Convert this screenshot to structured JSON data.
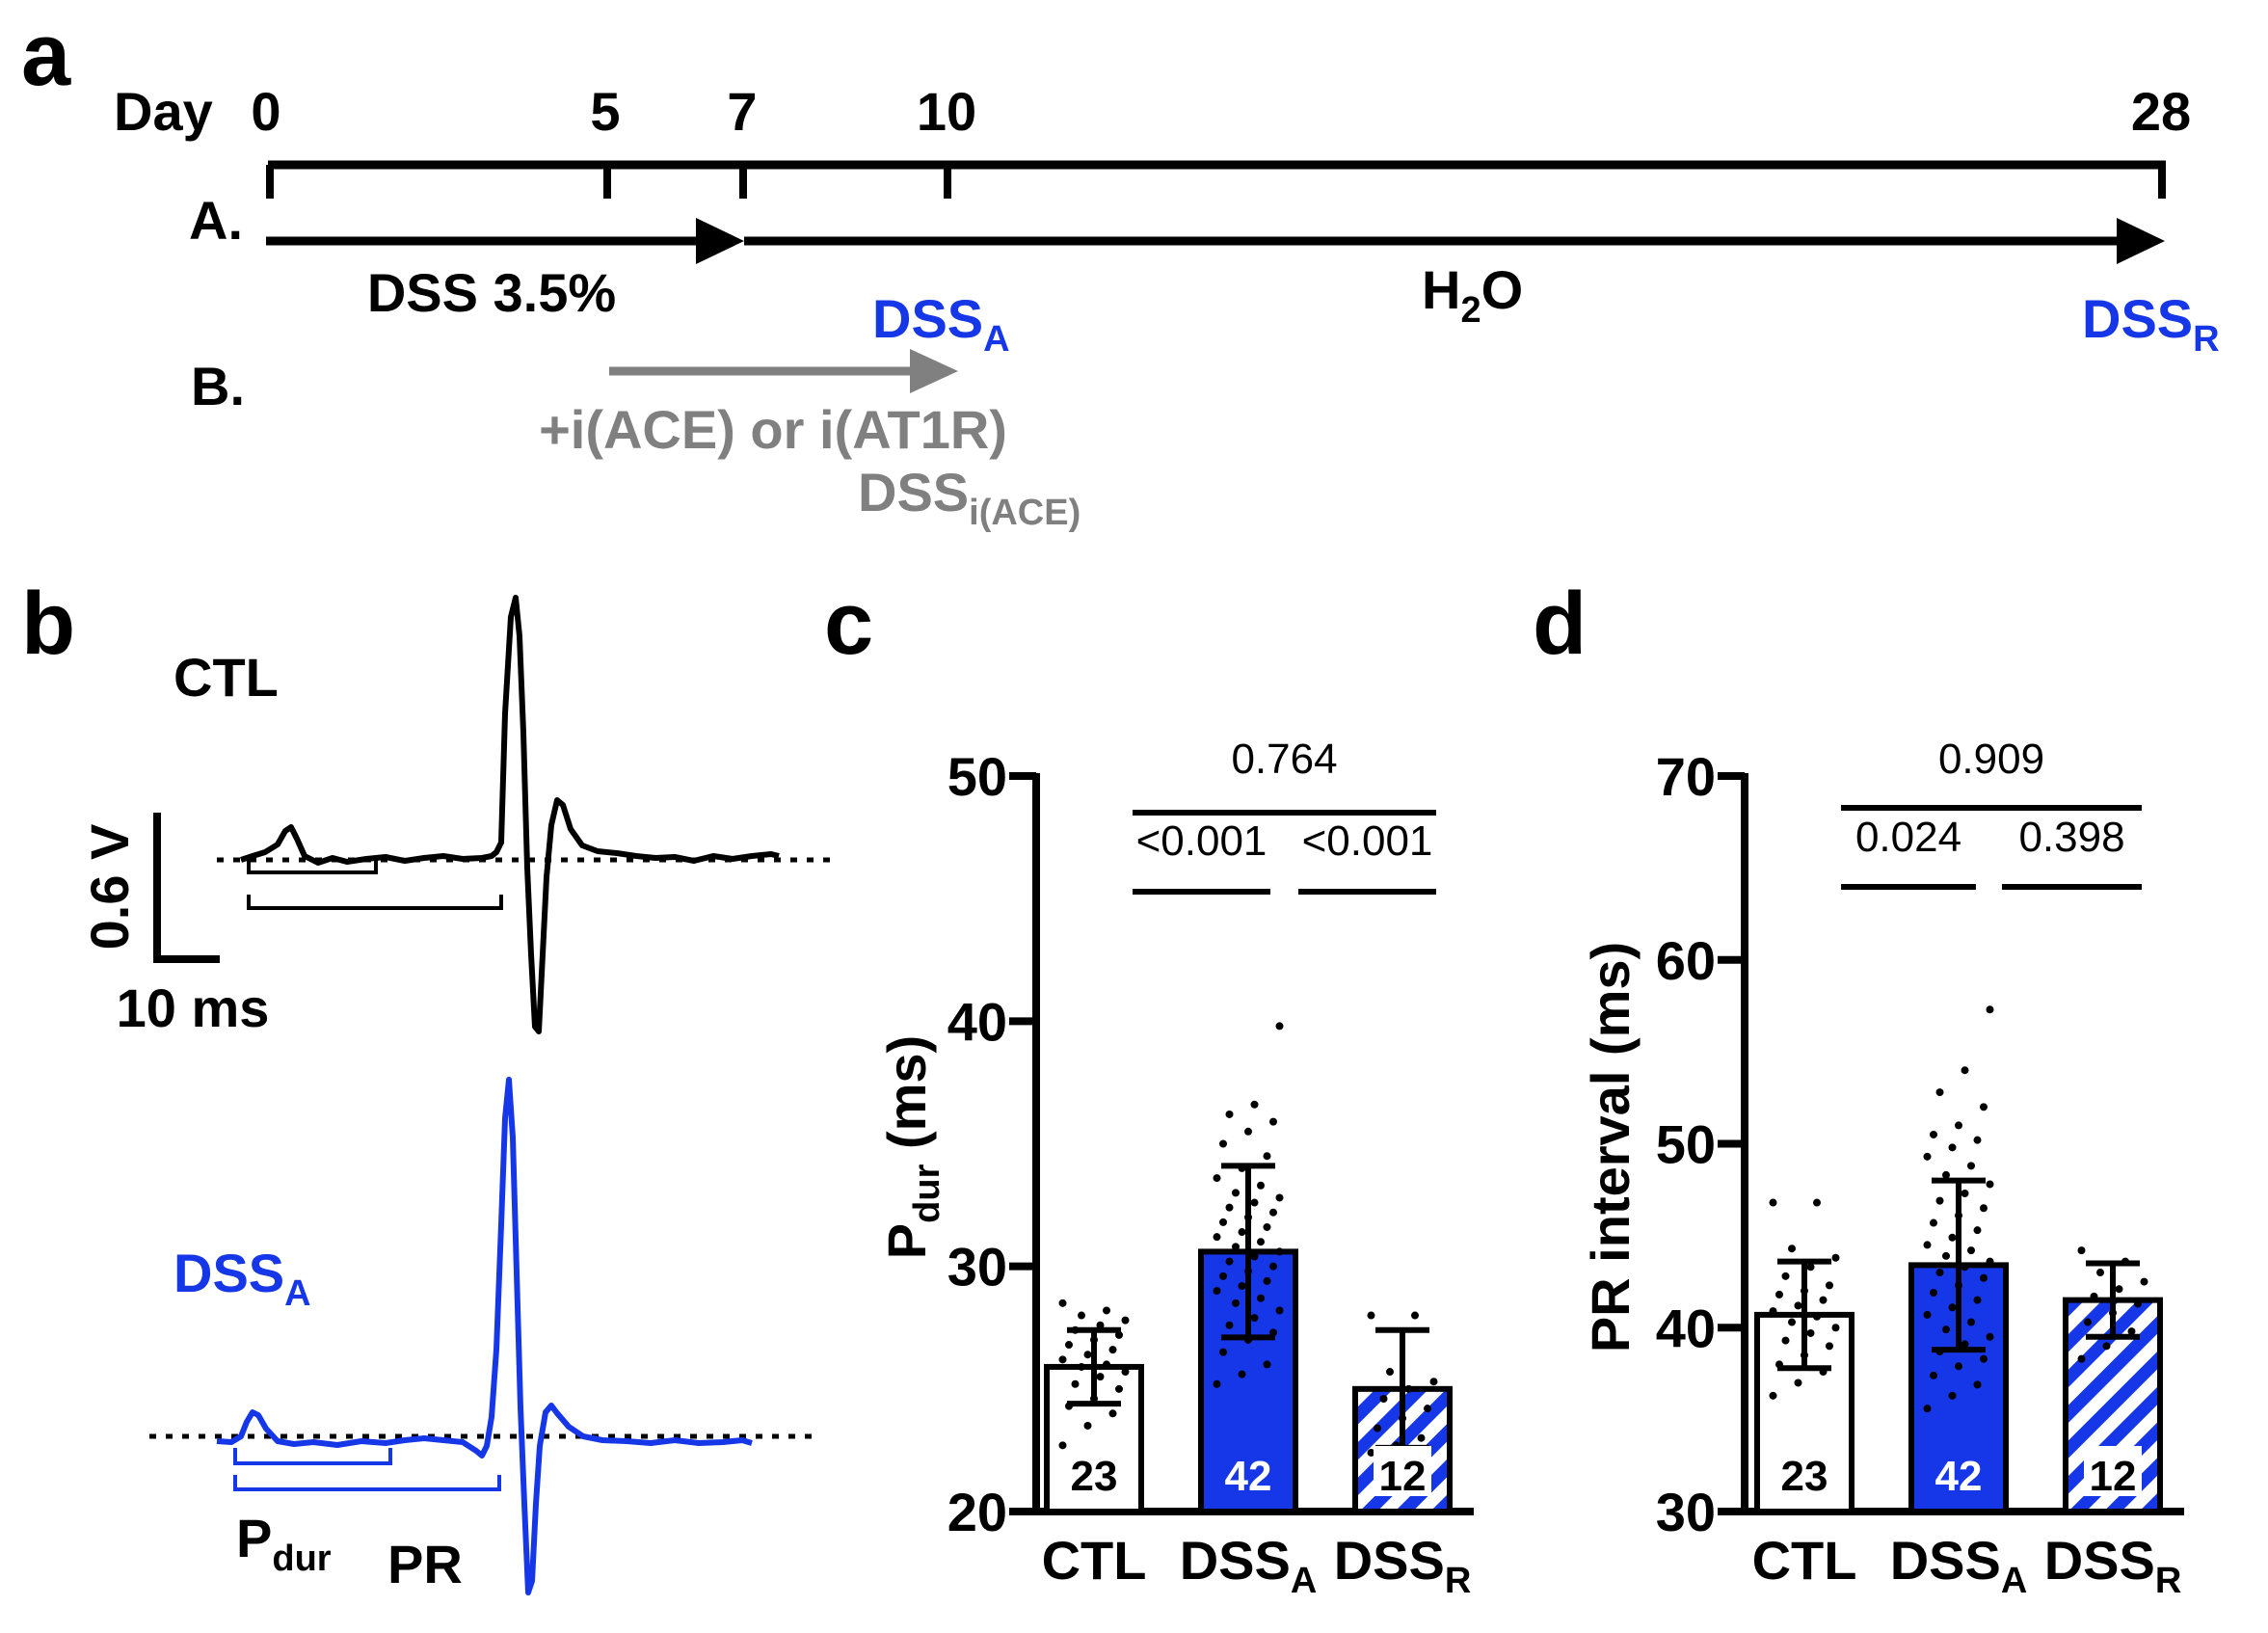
{
  "colors": {
    "black": "#000000",
    "blue": "#1637e8",
    "gray": "#808080",
    "white": "#ffffff"
  },
  "panel_a": {
    "letter": "a",
    "day_label": "Day",
    "days": [
      "0",
      "5",
      "7",
      "10",
      "28"
    ],
    "row_a": "A.",
    "row_b": "B.",
    "dss_label": "DSS 3.5%",
    "h2o_main": "H",
    "h2o_sub": "2",
    "h2o_end": "O",
    "dssa_main": "DSS",
    "dssa_sub": "A",
    "dssr_main": "DSS",
    "dssr_sub": "R",
    "inhib_label": "+i(ACE) or i(AT1R)",
    "dssi_main": "DSS",
    "dssi_sub": "i(ACE)"
  },
  "panel_b": {
    "letter": "b",
    "ctl_label": "CTL",
    "dssa_main": "DSS",
    "dssa_sub": "A",
    "scale_v": "0.6 V",
    "scale_t": "10 ms",
    "pdur_main": "P",
    "pdur_sub": "dur",
    "pr_label": "PR"
  },
  "chart_data": [
    {
      "panel": "c",
      "type": "bar",
      "title": "",
      "ylabel_main": "P",
      "ylabel_sub": "dur",
      "ylabel_units": " (ms)",
      "ylim": [
        20,
        50
      ],
      "yticks": [
        "20",
        "30",
        "40",
        "50"
      ],
      "categories": [
        {
          "main": "CTL",
          "sub": ""
        },
        {
          "main": "DSS",
          "sub": "A"
        },
        {
          "main": "DSS",
          "sub": "R"
        }
      ],
      "values": [
        25.9,
        30.6,
        25.0
      ],
      "sd": [
        1.5,
        3.5,
        2.4
      ],
      "n": [
        "23",
        "42",
        "12"
      ],
      "pvalues": {
        "ctl_vs_dssr": "0.764",
        "ctl_vs_dssa": "<0.001",
        "dssa_vs_dssr": "<0.001"
      },
      "points": [
        [
          22.7,
          23.5,
          24.0,
          24.3,
          24.6,
          25.0,
          25.2,
          25.5,
          25.7,
          25.9,
          26.0,
          26.2,
          26.4,
          26.6,
          26.8,
          27.0,
          27.2,
          27.4,
          27.6,
          27.8,
          28.0,
          28.2,
          28.5
        ],
        [
          25.2,
          25.6,
          26.0,
          26.5,
          27.0,
          27.3,
          27.6,
          27.9,
          28.2,
          28.5,
          28.7,
          29.0,
          29.2,
          29.4,
          29.6,
          29.8,
          30.0,
          30.2,
          30.4,
          30.6,
          30.8,
          31.0,
          31.2,
          31.4,
          31.6,
          31.8,
          32.0,
          32.2,
          32.4,
          32.6,
          32.8,
          33.0,
          33.3,
          33.6,
          34.0,
          34.5,
          35.0,
          35.5,
          35.9,
          36.2,
          36.6,
          39.8
        ],
        [
          22.4,
          22.7,
          23.0,
          23.4,
          23.8,
          24.2,
          24.6,
          25.0,
          25.3,
          25.7,
          28.0,
          28.0
        ]
      ]
    },
    {
      "panel": "d",
      "type": "bar",
      "title": "",
      "ylabel_main": "PR interval (ms)",
      "ylabel_sub": "",
      "ylabel_units": "",
      "ylim": [
        30,
        70
      ],
      "yticks": [
        "30",
        "40",
        "50",
        "60",
        "70"
      ],
      "categories": [
        {
          "main": "CTL",
          "sub": ""
        },
        {
          "main": "DSS",
          "sub": "A"
        },
        {
          "main": "DSS",
          "sub": "R"
        }
      ],
      "values": [
        40.7,
        43.4,
        41.5
      ],
      "sd": [
        2.9,
        4.6,
        2.0
      ],
      "n": [
        "23",
        "42",
        "12"
      ],
      "pvalues": {
        "ctl_vs_dssr": "0.909",
        "ctl_vs_dssa": "0.024",
        "dssa_vs_dssr": "0.398"
      },
      "points": [
        [
          36.3,
          37.0,
          37.6,
          38.0,
          38.5,
          39.0,
          39.3,
          39.7,
          40.0,
          40.3,
          40.6,
          40.9,
          41.2,
          41.5,
          41.8,
          42.0,
          42.3,
          42.8,
          43.3,
          43.8,
          44.3,
          46.8,
          46.8
        ],
        [
          35.6,
          36.3,
          36.9,
          37.4,
          37.9,
          38.3,
          38.7,
          39.1,
          39.5,
          39.9,
          40.3,
          40.7,
          41.1,
          41.5,
          41.9,
          42.3,
          42.7,
          43.0,
          43.3,
          43.6,
          43.9,
          44.2,
          44.5,
          44.9,
          45.3,
          45.7,
          46.1,
          46.5,
          46.9,
          47.3,
          47.8,
          48.3,
          48.8,
          49.3,
          49.8,
          50.2,
          50.5,
          51.0,
          52.0,
          52.8,
          54.0,
          57.3
        ],
        [
          38.3,
          39.0,
          39.8,
          40.3,
          40.8,
          41.3,
          41.7,
          42.1,
          42.5,
          43.0,
          43.6,
          44.2
        ]
      ]
    }
  ]
}
